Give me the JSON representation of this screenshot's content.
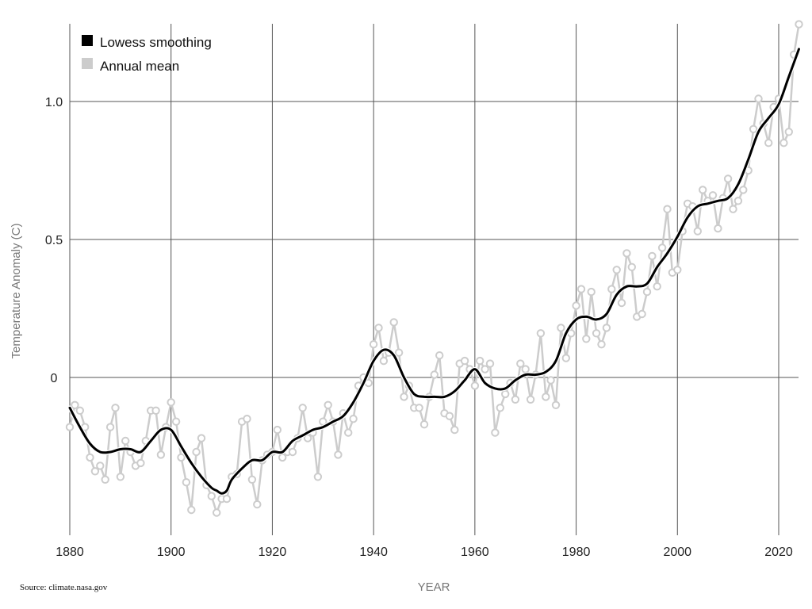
{
  "chart_data": {
    "type": "line",
    "xlabel": "YEAR",
    "ylabel": "Temperature Anomaly (C)",
    "source": "Source: climate.nasa.gov",
    "xlim": [
      1880,
      2024
    ],
    "ylim": [
      -0.57,
      1.3
    ],
    "x_ticks": [
      1880,
      1900,
      1920,
      1940,
      1960,
      1980,
      2000,
      2020
    ],
    "y_ticks": [
      {
        "value": 1.0,
        "label": "1.0"
      },
      {
        "value": 0.5,
        "label": "0.5"
      },
      {
        "value": 0,
        "label": "0"
      }
    ],
    "grid": true,
    "legend_position": "top-left",
    "series": [
      {
        "name": "Lowess smoothing",
        "color": "#000000",
        "style": "smooth-line",
        "x": [
          1880,
          1882,
          1884,
          1886,
          1888,
          1890,
          1892,
          1894,
          1896,
          1898,
          1900,
          1902,
          1904,
          1906,
          1908,
          1909,
          1910,
          1911,
          1912,
          1914,
          1916,
          1918,
          1920,
          1922,
          1924,
          1926,
          1928,
          1930,
          1932,
          1934,
          1936,
          1938,
          1940,
          1942,
          1944,
          1946,
          1948,
          1950,
          1952,
          1954,
          1956,
          1958,
          1960,
          1962,
          1964,
          1966,
          1968,
          1970,
          1972,
          1974,
          1976,
          1978,
          1980,
          1982,
          1984,
          1986,
          1988,
          1990,
          1992,
          1994,
          1996,
          1998,
          2000,
          2002,
          2004,
          2006,
          2008,
          2010,
          2012,
          2014,
          2016,
          2018,
          2020,
          2022,
          2024
        ],
        "y": [
          -0.11,
          -0.18,
          -0.24,
          -0.27,
          -0.27,
          -0.26,
          -0.26,
          -0.27,
          -0.23,
          -0.19,
          -0.19,
          -0.25,
          -0.31,
          -0.36,
          -0.4,
          -0.41,
          -0.42,
          -0.41,
          -0.37,
          -0.33,
          -0.3,
          -0.3,
          -0.27,
          -0.27,
          -0.23,
          -0.21,
          -0.19,
          -0.18,
          -0.16,
          -0.14,
          -0.09,
          -0.02,
          0.06,
          0.1,
          0.08,
          0.0,
          -0.06,
          -0.07,
          -0.07,
          -0.07,
          -0.05,
          -0.01,
          0.03,
          -0.02,
          -0.04,
          -0.04,
          -0.01,
          0.01,
          0.01,
          0.02,
          0.06,
          0.16,
          0.21,
          0.22,
          0.21,
          0.23,
          0.3,
          0.33,
          0.33,
          0.34,
          0.4,
          0.45,
          0.51,
          0.58,
          0.62,
          0.63,
          0.64,
          0.65,
          0.7,
          0.79,
          0.89,
          0.94,
          0.99,
          1.09,
          1.19
        ]
      },
      {
        "name": "Annual mean",
        "color": "#cccccc",
        "style": "line-markers",
        "x": [
          1880,
          1881,
          1882,
          1883,
          1884,
          1885,
          1886,
          1887,
          1888,
          1889,
          1890,
          1891,
          1892,
          1893,
          1894,
          1895,
          1896,
          1897,
          1898,
          1899,
          1900,
          1901,
          1902,
          1903,
          1904,
          1905,
          1906,
          1907,
          1908,
          1909,
          1910,
          1911,
          1912,
          1913,
          1914,
          1915,
          1916,
          1917,
          1918,
          1919,
          1920,
          1921,
          1922,
          1923,
          1924,
          1925,
          1926,
          1927,
          1928,
          1929,
          1930,
          1931,
          1932,
          1933,
          1934,
          1935,
          1936,
          1937,
          1938,
          1939,
          1940,
          1941,
          1942,
          1943,
          1944,
          1945,
          1946,
          1947,
          1948,
          1949,
          1950,
          1951,
          1952,
          1953,
          1954,
          1955,
          1956,
          1957,
          1958,
          1959,
          1960,
          1961,
          1962,
          1963,
          1964,
          1965,
          1966,
          1967,
          1968,
          1969,
          1970,
          1971,
          1972,
          1973,
          1974,
          1975,
          1976,
          1977,
          1978,
          1979,
          1980,
          1981,
          1982,
          1983,
          1984,
          1985,
          1986,
          1987,
          1988,
          1989,
          1990,
          1991,
          1992,
          1993,
          1994,
          1995,
          1996,
          1997,
          1998,
          1999,
          2000,
          2001,
          2002,
          2003,
          2004,
          2005,
          2006,
          2007,
          2008,
          2009,
          2010,
          2011,
          2012,
          2013,
          2014,
          2015,
          2016,
          2017,
          2018,
          2019,
          2020,
          2021,
          2022,
          2023,
          2024
        ],
        "y": [
          -0.18,
          -0.1,
          -0.12,
          -0.18,
          -0.29,
          -0.34,
          -0.32,
          -0.37,
          -0.18,
          -0.11,
          -0.36,
          -0.23,
          -0.27,
          -0.32,
          -0.31,
          -0.23,
          -0.12,
          -0.12,
          -0.28,
          -0.18,
          -0.09,
          -0.16,
          -0.29,
          -0.38,
          -0.48,
          -0.27,
          -0.22,
          -0.39,
          -0.43,
          -0.49,
          -0.44,
          -0.44,
          -0.36,
          -0.35,
          -0.16,
          -0.15,
          -0.37,
          -0.46,
          -0.3,
          -0.28,
          -0.27,
          -0.19,
          -0.29,
          -0.27,
          -0.27,
          -0.22,
          -0.11,
          -0.22,
          -0.2,
          -0.36,
          -0.16,
          -0.1,
          -0.16,
          -0.28,
          -0.13,
          -0.2,
          -0.15,
          -0.03,
          0.0,
          -0.02,
          0.12,
          0.18,
          0.06,
          0.09,
          0.2,
          0.09,
          -0.07,
          -0.03,
          -0.11,
          -0.11,
          -0.17,
          -0.07,
          0.01,
          0.08,
          -0.13,
          -0.14,
          -0.19,
          0.05,
          0.06,
          0.03,
          -0.03,
          0.06,
          0.03,
          0.05,
          -0.2,
          -0.11,
          -0.06,
          -0.02,
          -0.08,
          0.05,
          0.03,
          -0.08,
          0.01,
          0.16,
          -0.07,
          -0.01,
          -0.1,
          0.18,
          0.07,
          0.16,
          0.26,
          0.32,
          0.14,
          0.31,
          0.16,
          0.12,
          0.18,
          0.32,
          0.39,
          0.27,
          0.45,
          0.4,
          0.22,
          0.23,
          0.31,
          0.44,
          0.33,
          0.47,
          0.61,
          0.38,
          0.39,
          0.53,
          0.63,
          0.62,
          0.53,
          0.68,
          0.64,
          0.66,
          0.54,
          0.65,
          0.72,
          0.61,
          0.64,
          0.68,
          0.75,
          0.9,
          1.01,
          0.92,
          0.85,
          0.98,
          1.01,
          0.85,
          0.89,
          1.17,
          1.28
        ]
      }
    ]
  }
}
